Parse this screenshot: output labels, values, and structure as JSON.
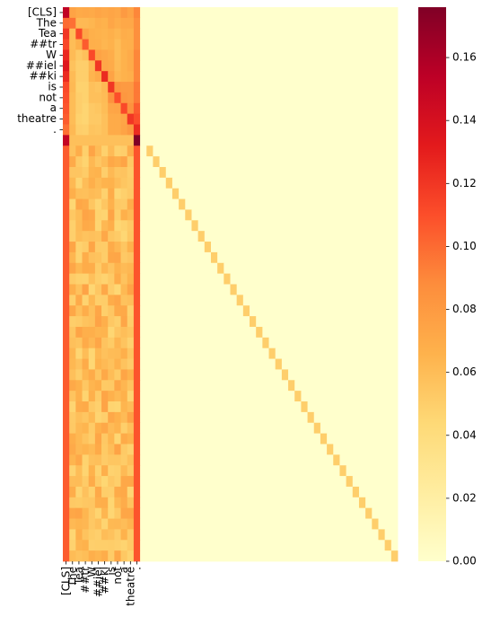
{
  "chart_data": {
    "type": "heatmap",
    "title": "",
    "xlabel": "",
    "ylabel": "",
    "n_rows": 52,
    "n_cols": 52,
    "x_tick_labels": [
      "[CLS]",
      "The",
      "Tea",
      "##tr",
      "W",
      "##iel",
      "##ki",
      "is",
      "not",
      "a",
      "theatre",
      "."
    ],
    "y_tick_labels": [
      "[CLS]",
      "The",
      "Tea",
      "##tr",
      "W",
      "##iel",
      "##ki",
      "is",
      "not",
      "a",
      "theatre",
      "."
    ],
    "colorbar": {
      "min": 0.0,
      "max": 0.176,
      "ticks": [
        "0.00",
        "0.02",
        "0.04",
        "0.06",
        "0.08",
        "0.10",
        "0.12",
        "0.14",
        "0.16"
      ],
      "tick_values": [
        0.0,
        0.02,
        0.04,
        0.06,
        0.08,
        0.1,
        0.12,
        0.14,
        0.16
      ]
    },
    "colormap": "YlOrRd",
    "values_description_note": "",
    "token_block_values": [
      [
        0.152,
        0.075,
        0.071,
        0.072,
        0.071,
        0.074,
        0.072,
        0.074,
        0.072,
        0.08,
        0.075,
        0.09
      ],
      [
        0.1,
        0.098,
        0.062,
        0.062,
        0.064,
        0.068,
        0.066,
        0.073,
        0.069,
        0.072,
        0.072,
        0.086
      ],
      [
        0.12,
        0.06,
        0.112,
        0.074,
        0.067,
        0.066,
        0.065,
        0.067,
        0.064,
        0.069,
        0.068,
        0.086
      ],
      [
        0.113,
        0.06,
        0.067,
        0.105,
        0.068,
        0.067,
        0.064,
        0.066,
        0.06,
        0.067,
        0.068,
        0.086
      ],
      [
        0.126,
        0.061,
        0.053,
        0.058,
        0.112,
        0.075,
        0.072,
        0.069,
        0.06,
        0.066,
        0.07,
        0.09
      ],
      [
        0.135,
        0.057,
        0.05,
        0.05,
        0.063,
        0.12,
        0.072,
        0.07,
        0.061,
        0.066,
        0.07,
        0.09
      ],
      [
        0.125,
        0.061,
        0.05,
        0.05,
        0.065,
        0.07,
        0.125,
        0.075,
        0.063,
        0.066,
        0.068,
        0.09
      ],
      [
        0.112,
        0.062,
        0.048,
        0.048,
        0.058,
        0.056,
        0.062,
        0.12,
        0.082,
        0.08,
        0.08,
        0.095
      ],
      [
        0.11,
        0.06,
        0.05,
        0.048,
        0.058,
        0.058,
        0.061,
        0.085,
        0.11,
        0.082,
        0.08,
        0.095
      ],
      [
        0.108,
        0.06,
        0.05,
        0.046,
        0.053,
        0.055,
        0.06,
        0.073,
        0.074,
        0.112,
        0.085,
        0.105
      ],
      [
        0.105,
        0.06,
        0.048,
        0.046,
        0.053,
        0.053,
        0.058,
        0.07,
        0.07,
        0.074,
        0.12,
        0.11
      ],
      [
        0.098,
        0.062,
        0.05,
        0.049,
        0.056,
        0.055,
        0.058,
        0.07,
        0.07,
        0.075,
        0.081,
        0.125
      ]
    ],
    "row_52_block_values": [
      0.15,
      0.058,
      0.058,
      0.058,
      0.058,
      0.058,
      0.058,
      0.058,
      0.058,
      0.058,
      0.058,
      0.176
    ],
    "padding_rows_pattern": {
      "first_col": 0.105,
      "mid_cols_range": [
        0.045,
        0.075
      ],
      "col_11": 0.108,
      "diagonal": 0.05,
      "background": 0.0
    }
  }
}
